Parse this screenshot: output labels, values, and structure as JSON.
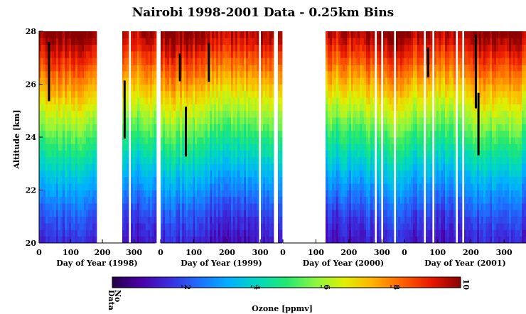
{
  "chart_data": {
    "type": "heatmap",
    "title": "Nairobi 1998-2001 Data - 0.25km Bins",
    "ylabel": "Altitude [km]",
    "ylim": [
      20,
      28
    ],
    "yticks": [
      "20",
      "22",
      "24",
      "26",
      "28"
    ],
    "bin_size_km": 0.25,
    "panels": [
      {
        "xlabel": "Day of Year (1998)",
        "xlim": [
          0,
          366
        ],
        "xticks": [
          "0",
          "100",
          "200",
          "300"
        ],
        "gaps": [
          [
            180,
            260
          ],
          [
            283,
            290
          ]
        ]
      },
      {
        "xlabel": "Day of Year (1999)",
        "xlim": [
          0,
          366
        ],
        "xticks": [
          "0",
          "100",
          "200",
          "300"
        ],
        "gaps": [
          [
            296,
            303
          ],
          [
            343,
            350
          ]
        ]
      },
      {
        "xlabel": "Day of Year (2000)",
        "xlim": [
          0,
          366
        ],
        "xticks": [
          "0",
          "100",
          "200",
          "300"
        ],
        "gaps": [
          [
            0,
            130
          ],
          [
            280,
            286
          ],
          [
            300,
            306
          ],
          [
            338,
            345
          ]
        ]
      },
      {
        "xlabel": "Day of Year (2001)",
        "xlim": [
          0,
          366
        ],
        "xticks": [
          "0",
          "100",
          "200",
          "300"
        ],
        "gaps": [
          [
            55,
            62
          ],
          [
            82,
            89
          ],
          [
            152,
            158
          ],
          [
            173,
            182
          ]
        ]
      }
    ],
    "ozone_profile": {
      "altitude_km": [
        20,
        20.5,
        21,
        21.5,
        22,
        22.5,
        23,
        23.5,
        24,
        24.5,
        25,
        25.5,
        26,
        26.5,
        27,
        27.5,
        28
      ],
      "ozone_ppmv": [
        1.3,
        1.6,
        1.95,
        2.4,
        2.9,
        3.4,
        3.95,
        4.5,
        5.05,
        5.65,
        6.25,
        6.85,
        7.45,
        8.05,
        8.7,
        9.35,
        9.9
      ]
    },
    "colorbar": {
      "label": "Ozone [ppmv]",
      "range": [
        0,
        10
      ],
      "ticks": [
        "2",
        "4",
        "6",
        "8",
        "10"
      ],
      "no_data_label": [
        "No",
        "Data"
      ],
      "colors": [
        "#240047",
        "#4b00a8",
        "#3a2ee0",
        "#1e6fff",
        "#00b0ff",
        "#00d8c0",
        "#23e870",
        "#8cf542",
        "#e0f000",
        "#ffb000",
        "#ff6000",
        "#e81800",
        "#8a0000"
      ]
    }
  }
}
